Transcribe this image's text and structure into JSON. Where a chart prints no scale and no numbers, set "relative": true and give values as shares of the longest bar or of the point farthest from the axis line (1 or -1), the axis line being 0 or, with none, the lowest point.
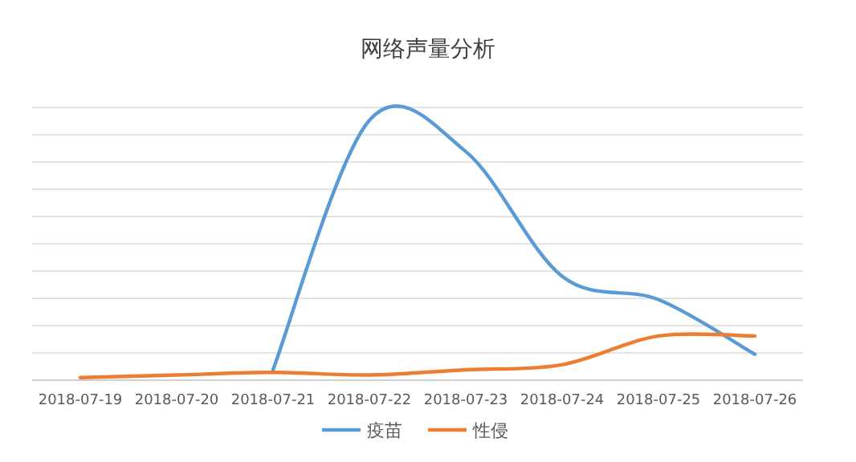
{
  "chart_data": {
    "type": "line",
    "title": "网络声量分析",
    "relative": true,
    "categories": [
      "2018-07-19",
      "2018-07-20",
      "2018-07-21",
      "2018-07-22",
      "2018-07-23",
      "2018-07-24",
      "2018-07-25",
      "2018-07-26"
    ],
    "series": [
      {
        "name": "疫苗",
        "color": "#5b9bd5",
        "values": [
          null,
          null,
          0.04,
          1,
          0.88,
          0.4,
          0.31,
          0.1
        ]
      },
      {
        "name": "性侵",
        "color": "#ed7d31",
        "values": [
          0.01,
          0.02,
          0.03,
          0.02,
          0.04,
          0.06,
          0.17,
          0.17
        ]
      }
    ],
    "grid": "y",
    "legend": "bottom",
    "tick_labels": "x",
    "marker": "none",
    "line_style": "solid"
  }
}
